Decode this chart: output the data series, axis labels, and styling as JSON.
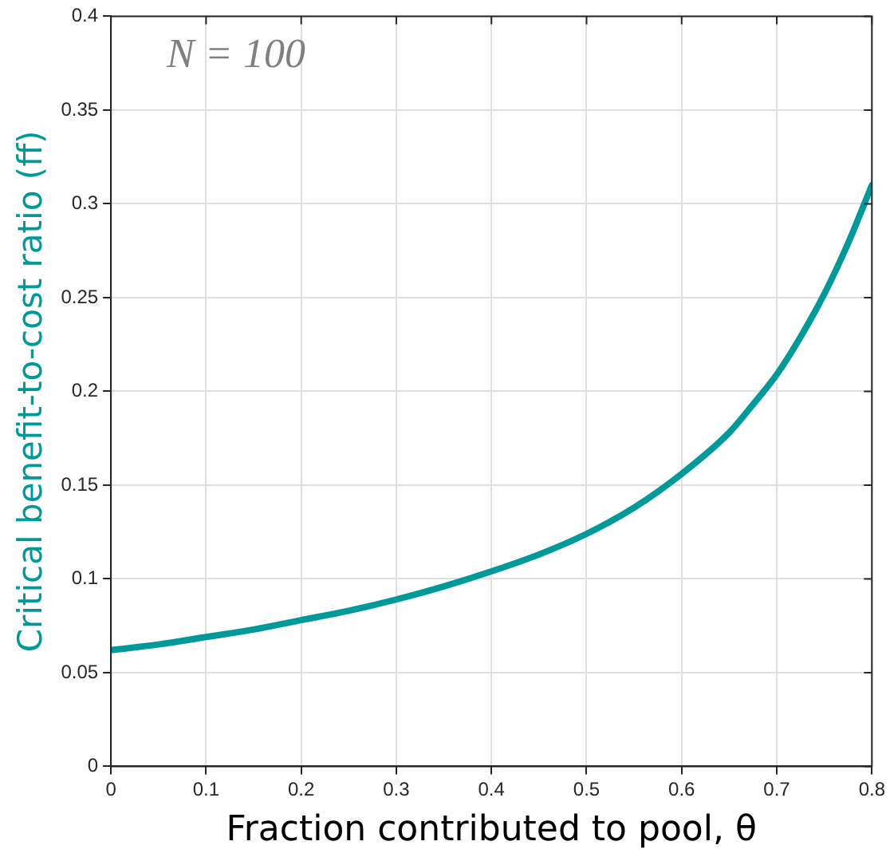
{
  "chart_data": {
    "type": "line",
    "xlabel": "Fraction contributed to pool, θ",
    "ylabel": "Critical benefit-to-cost ratio (ff)",
    "annotations": [
      "N = 100"
    ],
    "x": [
      0,
      0.05,
      0.1,
      0.15,
      0.2,
      0.25,
      0.3,
      0.35,
      0.4,
      0.45,
      0.5,
      0.55,
      0.6,
      0.65,
      0.675,
      0.7,
      0.725,
      0.75,
      0.775,
      0.8
    ],
    "series": [
      {
        "color": "#009999",
        "values": [
          0.062,
          0.065,
          0.069,
          0.073,
          0.078,
          0.083,
          0.089,
          0.096,
          0.104,
          0.113,
          0.124,
          0.138,
          0.156,
          0.178,
          0.193,
          0.209,
          0.229,
          0.252,
          0.279,
          0.31
        ]
      }
    ],
    "xlim": [
      0,
      0.8
    ],
    "xticks": [
      0,
      0.1,
      0.2,
      0.3,
      0.4,
      0.5,
      0.6,
      0.7,
      0.8
    ],
    "ylim": [
      0,
      0.4
    ],
    "yticks": [
      0,
      0.05,
      0.1,
      0.15,
      0.2,
      0.25,
      0.3,
      0.35,
      0.4
    ],
    "grid": true,
    "legend": false,
    "marker": "none",
    "line_style": "solid"
  }
}
